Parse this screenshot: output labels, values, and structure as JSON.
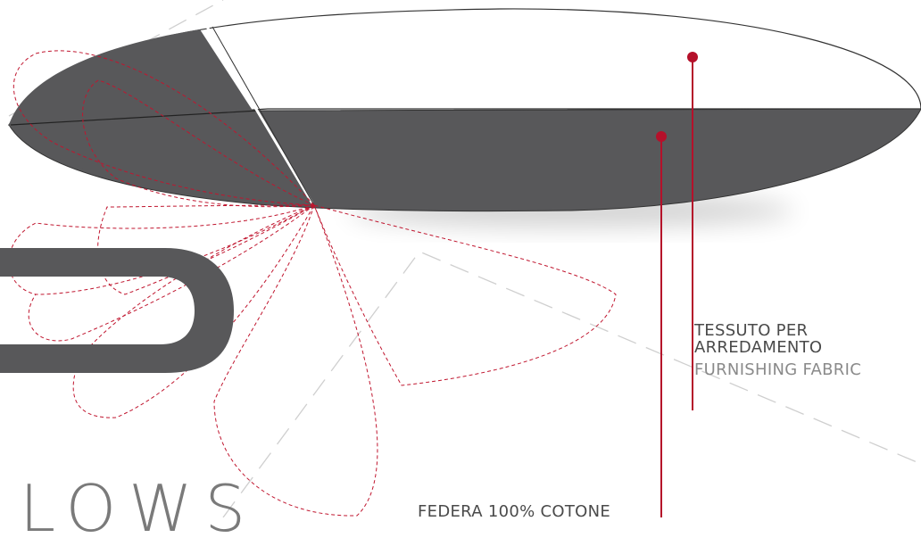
{
  "labels": {
    "furnishing": {
      "it": "TESSUTO PER ARREDAMENTO",
      "en": "FURNISHING FABRIC"
    },
    "lining": {
      "it": "FEDERA 100% COTONE"
    }
  },
  "brand": {
    "partial_text": "LOWS"
  },
  "colors": {
    "fabric_dark": "#58585a",
    "accent_red": "#b5102a",
    "dashed_grey": "#cfcfcf",
    "background": "#ffffff"
  }
}
